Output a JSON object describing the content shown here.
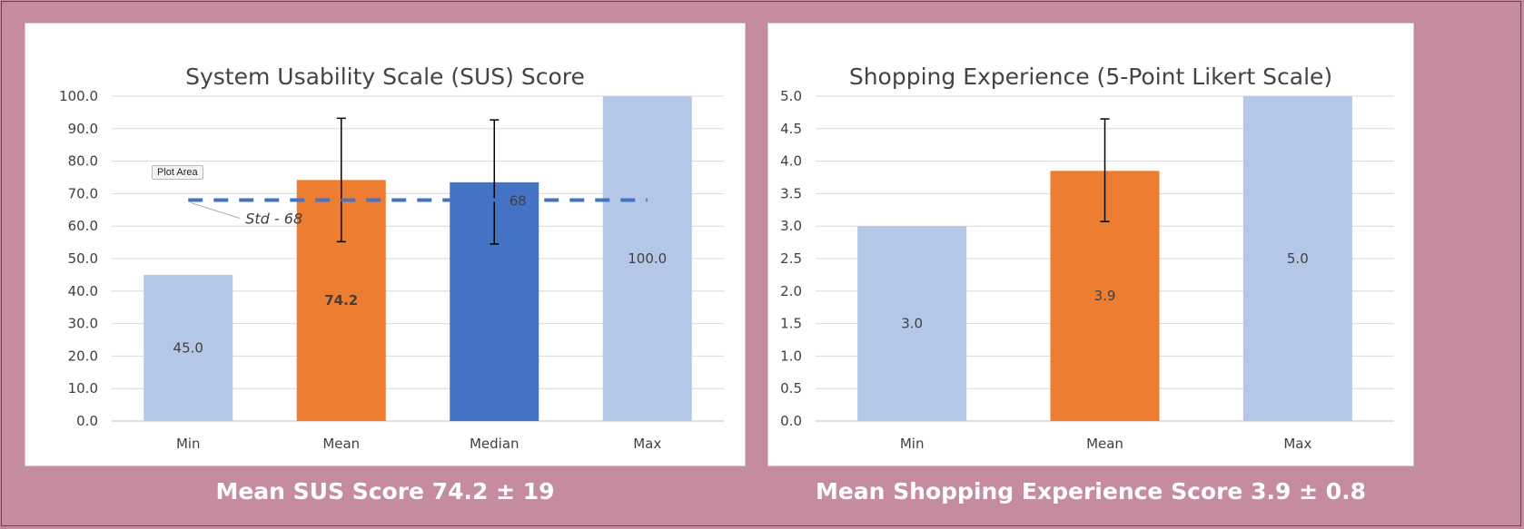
{
  "captions": {
    "left": "Mean SUS Score 74.2 ± 19",
    "right": "Mean Shopping Experience Score 3.9 ± 0.8"
  },
  "tooltip": "Plot Area",
  "chart_data": [
    {
      "type": "bar",
      "title": "System Usability Scale (SUS) Score",
      "categories": [
        "Min",
        "Mean",
        "Median",
        "Max"
      ],
      "values": [
        45.0,
        74.2,
        73.5,
        100.0
      ],
      "value_labels": [
        "45.0",
        "74.2",
        "",
        "100.0"
      ],
      "bold_labels": [
        false,
        true,
        false,
        false
      ],
      "colors": [
        "#b4c7e7",
        "#ed7d31",
        "#4472c4",
        "#b4c7e7"
      ],
      "error_bars": [
        null,
        [
          55.2,
          93.2
        ],
        [
          54.5,
          92.7
        ],
        null
      ],
      "ylim": [
        0,
        100
      ],
      "yticks": [
        0,
        10,
        20,
        30,
        40,
        50,
        60,
        70,
        80,
        90,
        100
      ],
      "ytick_labels": [
        "0.0",
        "10.0",
        "20.0",
        "30.0",
        "40.0",
        "50.0",
        "60.0",
        "70.0",
        "80.0",
        "90.0",
        "100.0"
      ],
      "grid": true,
      "reference_line": {
        "value": 68,
        "label": "68",
        "annotation": "Std - 68",
        "color": "#4472c4",
        "style": "dashed"
      }
    },
    {
      "type": "bar",
      "title": "Shopping Experience (5-Point Likert Scale)",
      "categories": [
        "Min",
        "Mean",
        "Max"
      ],
      "values": [
        3.0,
        3.85,
        5.0
      ],
      "value_labels": [
        "3.0",
        "3.9",
        "5.0"
      ],
      "bold_labels": [
        false,
        false,
        false
      ],
      "colors": [
        "#b4c7e7",
        "#ed7d31",
        "#b4c7e7"
      ],
      "error_bars": [
        null,
        [
          3.07,
          4.65
        ],
        null
      ],
      "ylim": [
        0,
        5
      ],
      "yticks": [
        0,
        0.5,
        1.0,
        1.5,
        2.0,
        2.5,
        3.0,
        3.5,
        4.0,
        4.5,
        5.0
      ],
      "ytick_labels": [
        "0.0",
        "0.5",
        "1.0",
        "1.5",
        "2.0",
        "2.5",
        "3.0",
        "3.5",
        "4.0",
        "4.5",
        "5.0"
      ],
      "grid": true
    }
  ]
}
